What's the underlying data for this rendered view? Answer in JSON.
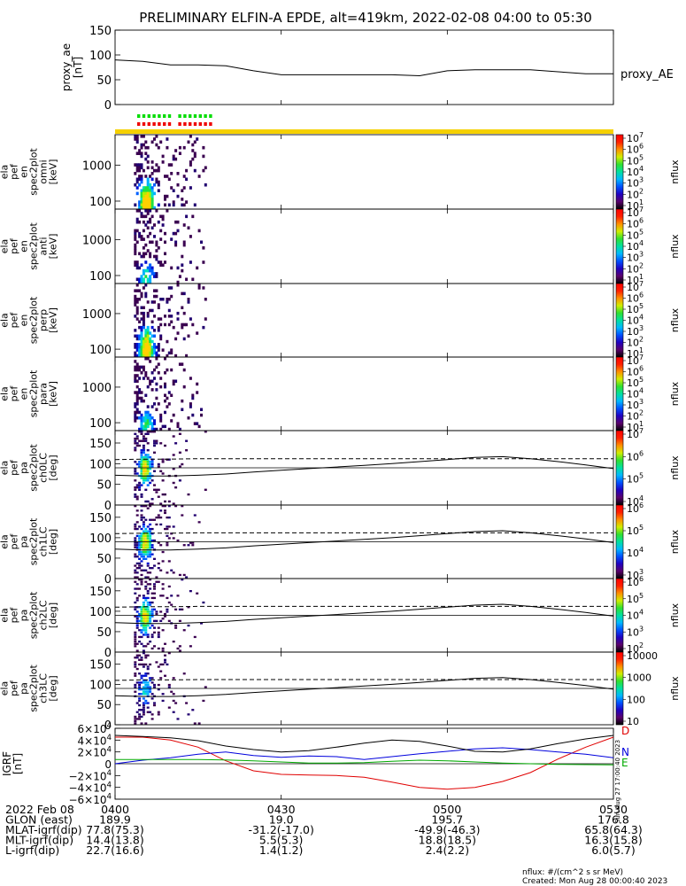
{
  "title": "PRELIMINARY ELFIN-A EPDE, alt=419km, 2022-02-08 04:00 to 05:30",
  "colors": {
    "sun_bar": "#f5d000",
    "flag_green": "#00dd00",
    "flag_red": "#ee0000",
    "comp_d": "#e00000",
    "comp_n": "#0000dd",
    "comp_e": "#00aa00",
    "total": "#000000"
  },
  "chart_data": [
    {
      "type": "line",
      "id": "proxy_ae",
      "ylabel": "proxy_ae [nT]",
      "legend": "proxy_AE",
      "ylim": [
        0,
        150
      ],
      "yticks": [
        "0",
        "50",
        "100",
        "150"
      ],
      "xlim_minutes": [
        0,
        90
      ],
      "x": [
        0,
        5,
        10,
        15,
        20,
        25,
        30,
        35,
        40,
        45,
        50,
        55,
        60,
        65,
        70,
        75,
        80,
        85,
        90
      ],
      "values": [
        90,
        87,
        80,
        80,
        78,
        68,
        60,
        60,
        60,
        60,
        60,
        58,
        68,
        70,
        70,
        70,
        66,
        62,
        62
      ]
    },
    {
      "type": "heatmap",
      "id": "en_omni",
      "ylabel_lines": [
        "ela",
        "pef",
        "en",
        "spec2plot",
        "omni",
        "[keV]"
      ],
      "yscale": "log",
      "ylim": [
        60,
        7000
      ],
      "yticks": [
        "100",
        "1000"
      ],
      "cbar": {
        "label": "nflux",
        "scale": "log",
        "ticks": [
          "10^1",
          "10^2",
          "10^3",
          "10^4",
          "10^5",
          "10^6",
          "10^7"
        ]
      }
    },
    {
      "type": "heatmap",
      "id": "en_anti",
      "ylabel_lines": [
        "ela",
        "pef",
        "en",
        "spec2plot",
        "anti",
        "[keV]"
      ],
      "yscale": "log",
      "ylim": [
        60,
        7000
      ],
      "yticks": [
        "100",
        "1000"
      ],
      "cbar": {
        "label": "nflux",
        "scale": "log",
        "ticks": [
          "10^1",
          "10^2",
          "10^3",
          "10^4",
          "10^5",
          "10^6",
          "10^7"
        ]
      }
    },
    {
      "type": "heatmap",
      "id": "en_perp",
      "ylabel_lines": [
        "ela",
        "pef",
        "en",
        "spec2plot",
        "perp",
        "[keV]"
      ],
      "yscale": "log",
      "ylim": [
        60,
        7000
      ],
      "yticks": [
        "100",
        "1000"
      ],
      "cbar": {
        "label": "nflux",
        "scale": "log",
        "ticks": [
          "10^1",
          "10^2",
          "10^3",
          "10^4",
          "10^5",
          "10^6",
          "10^7"
        ]
      }
    },
    {
      "type": "heatmap",
      "id": "en_para",
      "ylabel_lines": [
        "ela",
        "pef",
        "en",
        "spec2plot",
        "para",
        "[keV]"
      ],
      "yscale": "log",
      "ylim": [
        60,
        7000
      ],
      "yticks": [
        "100",
        "1000"
      ],
      "cbar": {
        "label": "nflux",
        "scale": "log",
        "ticks": [
          "10^1",
          "10^2",
          "10^3",
          "10^4",
          "10^5",
          "10^6",
          "10^7"
        ]
      }
    },
    {
      "type": "heatmap",
      "id": "pa_ch0",
      "ylabel_lines": [
        "ela",
        "pef",
        "pa",
        "spec2plot",
        "ch0LC",
        "[deg]"
      ],
      "ylim": [
        0,
        180
      ],
      "yticks": [
        "0",
        "50",
        "100",
        "150"
      ],
      "cbar": {
        "label": "nflux",
        "scale": "log",
        "ticks": [
          "10^4",
          "10^5",
          "10^6",
          "10^7"
        ]
      }
    },
    {
      "type": "heatmap",
      "id": "pa_ch1",
      "ylabel_lines": [
        "ela",
        "pef",
        "pa",
        "spec2plot",
        "ch1LC",
        "[deg]"
      ],
      "ylim": [
        0,
        180
      ],
      "yticks": [
        "0",
        "50",
        "100",
        "150"
      ],
      "cbar": {
        "label": "nflux",
        "scale": "log",
        "ticks": [
          "10^3",
          "10^4",
          "10^5",
          "10^6"
        ]
      }
    },
    {
      "type": "heatmap",
      "id": "pa_ch2",
      "ylabel_lines": [
        "ela",
        "pef",
        "pa",
        "spec2plot",
        "ch2LC",
        "[deg]"
      ],
      "ylim": [
        0,
        180
      ],
      "yticks": [
        "0",
        "50",
        "100",
        "150"
      ],
      "cbar": {
        "label": "nflux",
        "scale": "log",
        "ticks": [
          "10^2",
          "10^3",
          "10^4",
          "10^5",
          "10^6"
        ]
      }
    },
    {
      "type": "heatmap",
      "id": "pa_ch3",
      "ylabel_lines": [
        "ela",
        "pef",
        "pa",
        "spec2plot",
        "ch3LC",
        "[deg]"
      ],
      "ylim": [
        0,
        180
      ],
      "yticks": [
        "0",
        "50",
        "100",
        "150"
      ],
      "cbar": {
        "label": "nflux",
        "scale": "linear",
        "ticks": [
          "10",
          "100",
          "1000",
          "10000"
        ]
      }
    },
    {
      "type": "line",
      "id": "igrf",
      "ylabel": "IGRF [nT]",
      "ylim": [
        -60000,
        60000
      ],
      "yticks": [
        "−6×10^4",
        "−4×10^4",
        "−2×10^4",
        "0",
        "2×10^4",
        "4×10^4",
        "6×10^4"
      ],
      "x": [
        0,
        5,
        10,
        15,
        20,
        25,
        30,
        35,
        40,
        45,
        50,
        55,
        60,
        65,
        70,
        75,
        80,
        85,
        90
      ],
      "series": [
        {
          "name": "D",
          "values": [
            45000,
            45000,
            40000,
            28000,
            5000,
            -12000,
            -18000,
            -19000,
            -20000,
            -23000,
            -31000,
            -40000,
            -43000,
            -40000,
            -30000,
            -15000,
            8000,
            28000,
            45000
          ]
        },
        {
          "name": "N",
          "values": [
            0,
            6000,
            10000,
            16000,
            20000,
            14000,
            11000,
            13000,
            12000,
            7000,
            12000,
            17000,
            21000,
            25000,
            27000,
            24000,
            20000,
            16000,
            10000
          ]
        },
        {
          "name": "E",
          "values": [
            7000,
            7000,
            7000,
            7000,
            6500,
            5000,
            3000,
            1000,
            1000,
            2000,
            4000,
            6000,
            5000,
            3000,
            1000,
            0,
            -1000,
            -1500,
            -2000
          ]
        },
        {
          "name": "",
          "values": [
            48000,
            46000,
            44000,
            39000,
            30000,
            24000,
            20000,
            22000,
            28000,
            35000,
            40000,
            38000,
            30000,
            21000,
            20000,
            25000,
            34000,
            42000,
            48000
          ]
        }
      ]
    }
  ],
  "pa_boundaries": {
    "loss_cone": [
      72,
      70,
      70,
      72,
      75,
      80,
      84,
      88,
      92,
      96,
      100,
      105,
      110,
      115,
      117,
      112,
      105,
      97,
      88
    ],
    "anti_loss_cone": [
      110,
      111,
      111,
      112,
      112,
      112,
      112,
      112,
      112,
      112,
      112,
      112,
      112,
      112,
      112,
      112,
      112,
      112,
      112
    ],
    "x": [
      0,
      5,
      10,
      15,
      20,
      25,
      30,
      35,
      40,
      45,
      50,
      55,
      60,
      65,
      70,
      75,
      80,
      85,
      90
    ],
    "ref_deg": 90
  },
  "igrf_right_labels": [
    "D",
    "N",
    "E"
  ],
  "side_note": "Sun Aug 27 17:00:40 2023",
  "ephem": {
    "rows": [
      [
        "2022 Feb 08",
        "0400",
        "0430",
        "0500",
        "0530"
      ],
      [
        "GLON (east)",
        "189.9",
        "19.0",
        "195.7",
        "176.8"
      ],
      [
        "MLAT-igrf(dip)",
        "77.8(75.3)",
        "-31.2(-17.0)",
        "-49.9(-46.3)",
        "65.8(64.3)"
      ],
      [
        "MLT-igrf(dip)",
        "14.4(13.8)",
        "5.5(5.3)",
        "18.8(18.5)",
        "16.3(15.8)"
      ],
      [
        "L-igrf(dip)",
        "22.7(16.6)",
        "1.4(1.2)",
        "2.4(2.2)",
        "6.0(5.7)"
      ]
    ]
  },
  "footer": {
    "units": "nflux: #/(cm^2 s sr MeV)",
    "created": "Created: Mon Aug 28 00:00:40 2023"
  }
}
